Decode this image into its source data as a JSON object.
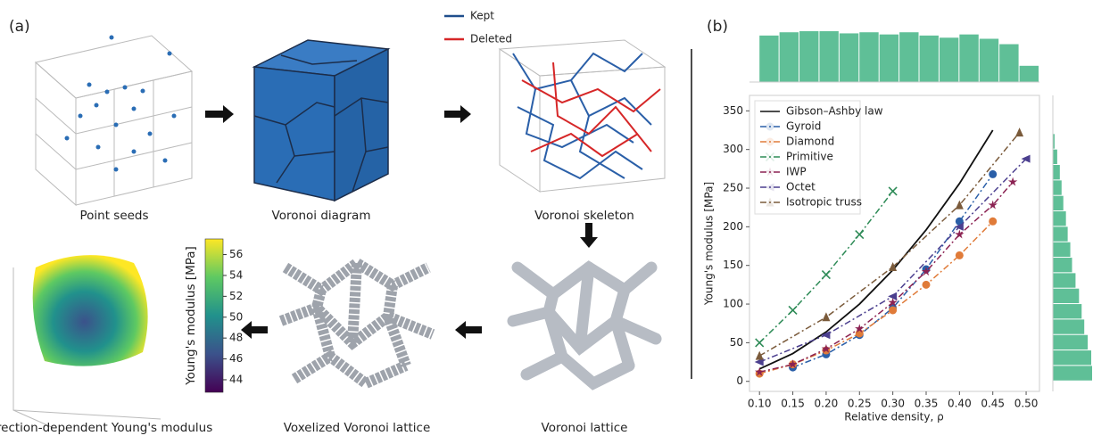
{
  "panel_a": {
    "label": "(a)",
    "captions": [
      "Point seeds",
      "Voronoi diagram",
      "Voronoi skeleton",
      "Voronoi lattice",
      "Voxelized Voronoi lattice",
      "Direction-dependent Young's modulus"
    ],
    "skeleton_legend": [
      {
        "name": "Kept",
        "color": "#1f4e8c"
      },
      {
        "name": "Deleted",
        "color": "#d62728"
      }
    ],
    "colorbar": {
      "label": "Young's modulus [MPa]",
      "lim": [
        42.8,
        57.5
      ],
      "ticks": [
        44,
        46,
        48,
        50,
        52,
        54,
        56
      ]
    }
  },
  "chart_data": {
    "type": "line",
    "label": "(b)",
    "x_label": "Relative density, ρ",
    "y_label": "Young's modulus [MPa]",
    "xlim": [
      0.085,
      0.52
    ],
    "ylim": [
      -13,
      370
    ],
    "xticks": [
      {
        "value": 0.1,
        "label": "0.10"
      },
      {
        "value": 0.15,
        "label": "0.15"
      },
      {
        "value": 0.2,
        "label": "0.20"
      },
      {
        "value": 0.25,
        "label": "0.25"
      },
      {
        "value": 0.3,
        "label": "0.30"
      },
      {
        "value": 0.35,
        "label": "0.35"
      },
      {
        "value": 0.4,
        "label": "0.40"
      },
      {
        "value": 0.45,
        "label": "0.45"
      },
      {
        "value": 0.5,
        "label": "0.50"
      }
    ],
    "yticks": [
      0,
      50,
      100,
      150,
      200,
      250,
      300,
      350
    ],
    "legend": "upper left",
    "series": [
      {
        "name": "Gibson–Ashby law",
        "color": "#111111",
        "dash": "solid",
        "marker": "none",
        "x": [
          0.1,
          0.15,
          0.2,
          0.25,
          0.3,
          0.35,
          0.4,
          0.45
        ],
        "values": [
          16,
          36,
          64,
          100,
          144,
          196,
          256,
          325
        ]
      },
      {
        "name": "Gyroid",
        "color": "#2a5fa8",
        "dash": "dashdot",
        "marker": "circle",
        "x": [
          0.15,
          0.2,
          0.25,
          0.3,
          0.35,
          0.4,
          0.45
        ],
        "values": [
          18,
          35,
          60,
          95,
          145,
          207,
          268
        ]
      },
      {
        "name": "Diamond",
        "color": "#e07b39",
        "dash": "dashdot",
        "marker": "circle",
        "x": [
          0.1,
          0.15,
          0.2,
          0.25,
          0.3,
          0.35,
          0.4,
          0.45
        ],
        "values": [
          10,
          22,
          40,
          62,
          92,
          125,
          163,
          207
        ]
      },
      {
        "name": "Primitive",
        "color": "#2e8b57",
        "dash": "dashdot",
        "marker": "x",
        "x": [
          0.1,
          0.15,
          0.2,
          0.25,
          0.3
        ],
        "values": [
          50,
          92,
          138,
          190,
          246
        ]
      },
      {
        "name": "IWP",
        "color": "#8b2252",
        "dash": "dashdot",
        "marker": "star",
        "x": [
          0.1,
          0.15,
          0.2,
          0.25,
          0.3,
          0.35,
          0.4,
          0.45,
          0.48
        ],
        "values": [
          12,
          22,
          42,
          68,
          102,
          142,
          190,
          228,
          258
        ]
      },
      {
        "name": "Octet",
        "color": "#4b3f8f",
        "dash": "dashdot",
        "marker": "tri-left",
        "x": [
          0.1,
          0.2,
          0.3,
          0.4,
          0.5
        ],
        "values": [
          25,
          60,
          110,
          200,
          288
        ]
      },
      {
        "name": "Isotropic truss",
        "color": "#7a5a3a",
        "dash": "dashdot",
        "marker": "tri-up",
        "x": [
          0.1,
          0.2,
          0.3,
          0.4,
          0.49
        ],
        "values": [
          33,
          83,
          148,
          228,
          322
        ]
      }
    ],
    "top_histogram": {
      "color": "#5fbf97",
      "bins": [
        0.1,
        0.13,
        0.16,
        0.19,
        0.22,
        0.25,
        0.28,
        0.31,
        0.34,
        0.37,
        0.4,
        0.43,
        0.46,
        0.49,
        0.52
      ],
      "counts": [
        43,
        46,
        47,
        47,
        45,
        46,
        44,
        46,
        43,
        41,
        44,
        40,
        35,
        15
      ]
    },
    "right_histogram": {
      "color": "#5fbf97",
      "bins": [
        0,
        20,
        40,
        60,
        80,
        100,
        120,
        140,
        160,
        180,
        200,
        220,
        240,
        260,
        280,
        300,
        320
      ],
      "counts": [
        45,
        44,
        40,
        36,
        33,
        30,
        26,
        22,
        20,
        17,
        15,
        12,
        10,
        8,
        5,
        2
      ]
    }
  }
}
